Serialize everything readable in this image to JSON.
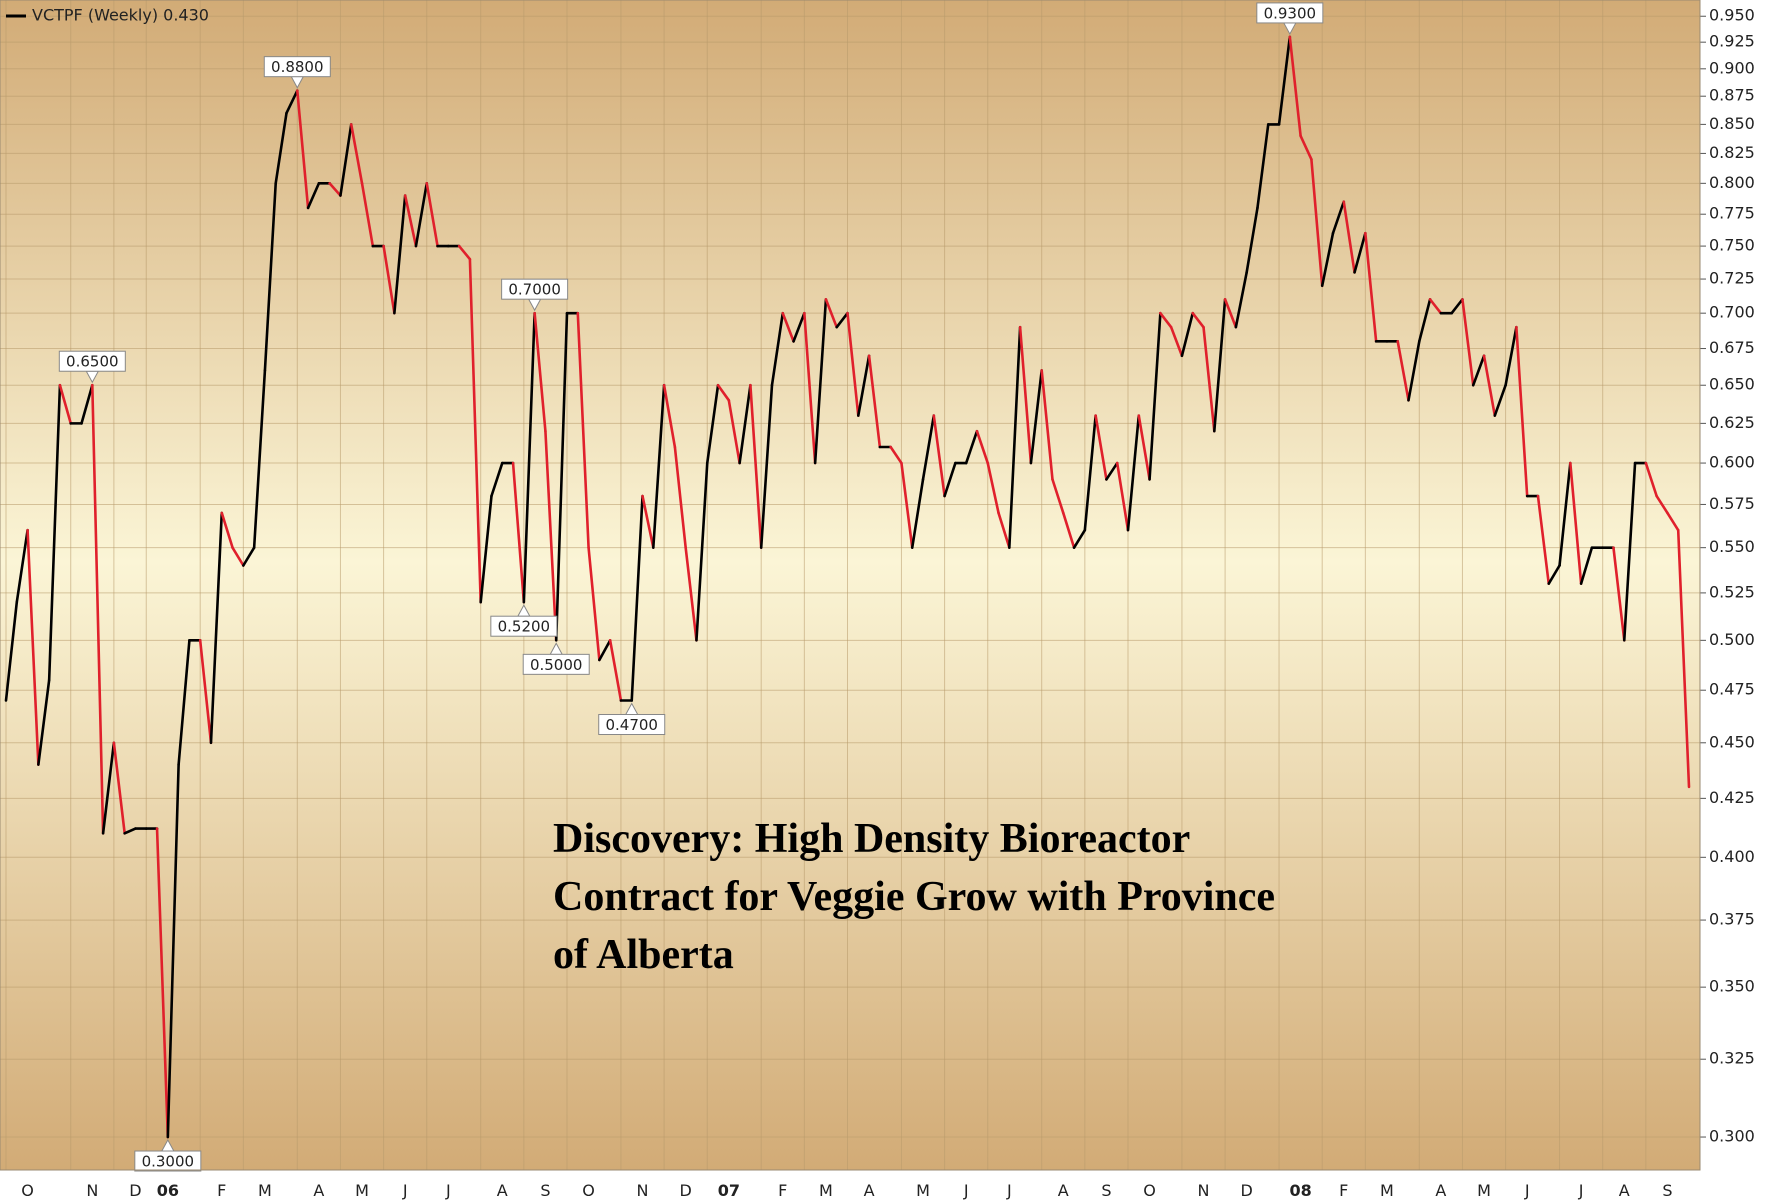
{
  "chart_data": {
    "type": "line",
    "legend_corner": "top-left",
    "log_scale": true,
    "grid": true,
    "up_color": "#000000",
    "down_color": "#e0202c",
    "annotation": [
      "Discovery: High Density Bioreactor",
      "Contract for Veggie Grow with Province",
      "of Alberta"
    ],
    "ylim": [
      0.29,
      0.966
    ],
    "yticks": [
      {
        "value": 0.3,
        "label": "0.300"
      },
      {
        "value": 0.325,
        "label": "0.325"
      },
      {
        "value": 0.35,
        "label": "0.350"
      },
      {
        "value": 0.375,
        "label": "0.375"
      },
      {
        "value": 0.4,
        "label": "0.400"
      },
      {
        "value": 0.425,
        "label": "0.425"
      },
      {
        "value": 0.45,
        "label": "0.450"
      },
      {
        "value": 0.475,
        "label": "0.475"
      },
      {
        "value": 0.5,
        "label": "0.500"
      },
      {
        "value": 0.525,
        "label": "0.525"
      },
      {
        "value": 0.55,
        "label": "0.550"
      },
      {
        "value": 0.575,
        "label": "0.575"
      },
      {
        "value": 0.6,
        "label": "0.600"
      },
      {
        "value": 0.625,
        "label": "0.625"
      },
      {
        "value": 0.65,
        "label": "0.650"
      },
      {
        "value": 0.675,
        "label": "0.675"
      },
      {
        "value": 0.7,
        "label": "0.700"
      },
      {
        "value": 0.725,
        "label": "0.725"
      },
      {
        "value": 0.75,
        "label": "0.750"
      },
      {
        "value": 0.775,
        "label": "0.775"
      },
      {
        "value": 0.8,
        "label": "0.800"
      },
      {
        "value": 0.825,
        "label": "0.825"
      },
      {
        "value": 0.85,
        "label": "0.850"
      },
      {
        "value": 0.875,
        "label": "0.875"
      },
      {
        "value": 0.9,
        "label": "0.900"
      },
      {
        "value": 0.925,
        "label": "0.925"
      },
      {
        "value": 0.95,
        "label": "0.950"
      }
    ],
    "categories": [
      null,
      null,
      "O",
      null,
      null,
      null,
      null,
      null,
      "N",
      null,
      null,
      null,
      "D",
      null,
      null,
      "06",
      null,
      null,
      null,
      null,
      "F",
      null,
      null,
      null,
      "M",
      null,
      null,
      null,
      null,
      "A",
      null,
      null,
      null,
      "M",
      null,
      null,
      null,
      "J",
      null,
      null,
      null,
      "J",
      null,
      null,
      null,
      null,
      "A",
      null,
      null,
      null,
      "S",
      null,
      null,
      null,
      "O",
      null,
      null,
      null,
      null,
      "N",
      null,
      null,
      null,
      "D",
      null,
      null,
      null,
      "07",
      null,
      null,
      null,
      null,
      "F",
      null,
      null,
      null,
      "M",
      null,
      null,
      null,
      "A",
      null,
      null,
      null,
      null,
      "M",
      null,
      null,
      null,
      "J",
      null,
      null,
      null,
      "J",
      null,
      null,
      null,
      null,
      "A",
      null,
      null,
      null,
      "S",
      null,
      null,
      null,
      "O",
      null,
      null,
      null,
      null,
      "N",
      null,
      null,
      null,
      "D",
      null,
      null,
      null,
      null,
      "08",
      null,
      null,
      null,
      "F",
      null,
      null,
      null,
      "M",
      null,
      null,
      null,
      null,
      "A",
      null,
      null,
      null,
      "M",
      null,
      null,
      null,
      "J",
      null,
      null,
      null,
      null,
      "J",
      null,
      null,
      null,
      "A",
      null,
      null,
      null,
      "S",
      null,
      null
    ],
    "series": [
      {
        "name": "VCTPF (Weekly) 0.430",
        "color": "#000000",
        "values": [
          0.47,
          0.52,
          0.56,
          0.44,
          0.48,
          0.65,
          0.625,
          0.625,
          0.65,
          0.41,
          0.45,
          0.41,
          0.412,
          0.412,
          0.412,
          0.3,
          0.44,
          0.5,
          0.5,
          0.45,
          0.57,
          0.55,
          0.54,
          0.55,
          0.66,
          0.8,
          0.86,
          0.88,
          0.78,
          0.8,
          0.8,
          0.79,
          0.85,
          0.8,
          0.75,
          0.75,
          0.7,
          0.79,
          0.75,
          0.8,
          0.75,
          0.75,
          0.75,
          0.74,
          0.52,
          0.58,
          0.6,
          0.6,
          0.52,
          0.7,
          0.62,
          0.5,
          0.7,
          0.7,
          0.55,
          0.49,
          0.5,
          0.47,
          0.47,
          0.58,
          0.55,
          0.65,
          0.61,
          0.55,
          0.5,
          0.6,
          0.65,
          0.64,
          0.6,
          0.65,
          0.55,
          0.65,
          0.7,
          0.68,
          0.7,
          0.6,
          0.71,
          0.69,
          0.7,
          0.63,
          0.67,
          0.61,
          0.61,
          0.6,
          0.55,
          0.59,
          0.63,
          0.58,
          0.6,
          0.6,
          0.62,
          0.6,
          0.57,
          0.55,
          0.69,
          0.6,
          0.66,
          0.59,
          0.57,
          0.55,
          0.56,
          0.63,
          0.59,
          0.6,
          0.56,
          0.63,
          0.59,
          0.7,
          0.69,
          0.67,
          0.7,
          0.69,
          0.62,
          0.71,
          0.69,
          0.73,
          0.78,
          0.85,
          0.85,
          0.93,
          0.84,
          0.82,
          0.72,
          0.76,
          0.785,
          0.73,
          0.76,
          0.68,
          0.68,
          0.68,
          0.64,
          0.68,
          0.71,
          0.7,
          0.7,
          0.71,
          0.65,
          0.67,
          0.63,
          0.65,
          0.69,
          0.58,
          0.58,
          0.53,
          0.54,
          0.6,
          0.53,
          0.55,
          0.55,
          0.55,
          0.5,
          0.6,
          0.6,
          0.58,
          0.57,
          0.56,
          0.43
        ],
        "value_labels": [
          null,
          null,
          null,
          null,
          null,
          null,
          null,
          null,
          "0.6500",
          null,
          null,
          null,
          null,
          null,
          null,
          "0.3000",
          null,
          null,
          null,
          null,
          null,
          null,
          null,
          null,
          null,
          null,
          null,
          "0.8800",
          null,
          null,
          null,
          null,
          null,
          null,
          null,
          null,
          null,
          null,
          null,
          null,
          null,
          null,
          null,
          null,
          null,
          null,
          null,
          null,
          "0.5200",
          "0.7000",
          null,
          "0.5000",
          null,
          null,
          null,
          null,
          null,
          null,
          "0.4700",
          null,
          null,
          null,
          null,
          null,
          null,
          null,
          null,
          null,
          null,
          null,
          null,
          null,
          null,
          null,
          null,
          null,
          null,
          null,
          null,
          null,
          null,
          null,
          null,
          null,
          null,
          null,
          null,
          null,
          null,
          null,
          null,
          null,
          null,
          null,
          null,
          null,
          null,
          null,
          null,
          null,
          null,
          null,
          null,
          null,
          null,
          null,
          null,
          null,
          null,
          null,
          null,
          null,
          null,
          null,
          null,
          null,
          null,
          null,
          null,
          "0.9300",
          null,
          null,
          null,
          null,
          null,
          null,
          null,
          null,
          null,
          null,
          null,
          null,
          null,
          null,
          null,
          null,
          null,
          null,
          null,
          null,
          null,
          null,
          null,
          null,
          null,
          null,
          null,
          null,
          null,
          null,
          null,
          null,
          null,
          null,
          null,
          null,
          null
        ]
      }
    ]
  }
}
